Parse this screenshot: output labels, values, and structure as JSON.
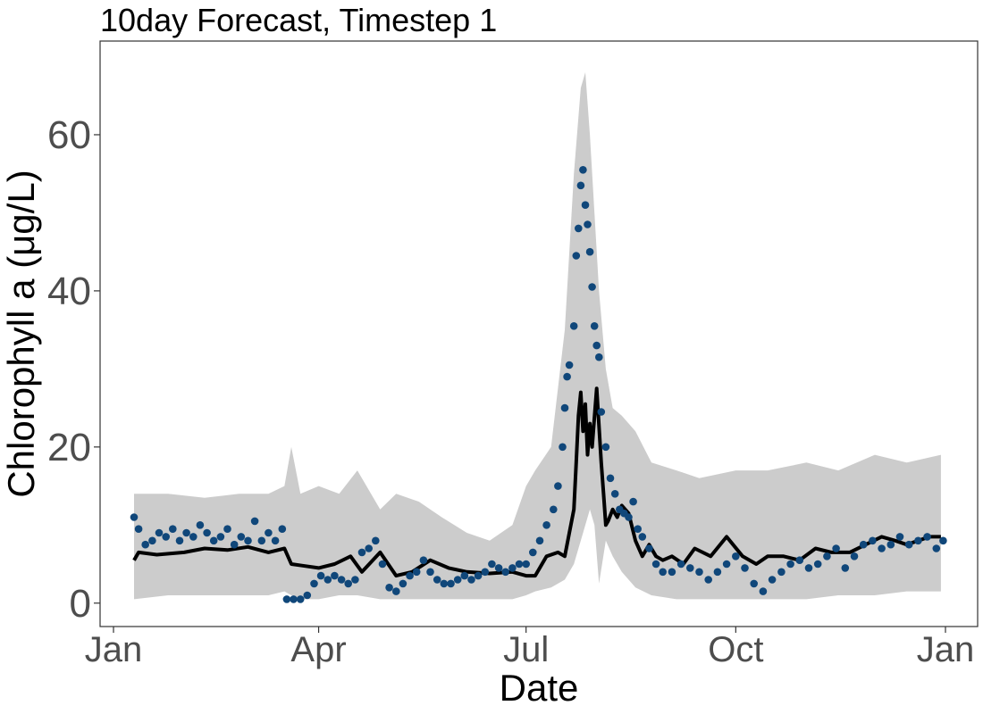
{
  "chart_data": {
    "type": "line",
    "title": "10day Forecast, Timestep 1",
    "xlabel": "Date",
    "ylabel": "Chlorophyll a (μg/L)",
    "xlim": [
      "2019-01-01",
      "2020-01-01"
    ],
    "ylim": [
      -3,
      72
    ],
    "x_tick_labels": [
      {
        "date": "2019-01-01",
        "label": "Jan"
      },
      {
        "date": "2019-04-01",
        "label": "Apr"
      },
      {
        "date": "2019-07-01",
        "label": "Jul"
      },
      {
        "date": "2019-10-01",
        "label": "Oct"
      },
      {
        "date": "2020-01-01",
        "label": "Jan"
      }
    ],
    "y_ticks": [
      0,
      20,
      40,
      60
    ],
    "grid": false,
    "colors": {
      "ribbon": "#cccccc",
      "forecast_line": "#000000",
      "observations": "#10477a",
      "panel_border": "#333333",
      "tick_text": "#4d4d4d"
    },
    "series": [
      {
        "kind": "ribbon",
        "x": [
          "2019-01-10",
          "2019-01-25",
          "2019-02-10",
          "2019-02-25",
          "2019-03-10",
          "2019-03-17",
          "2019-03-20",
          "2019-03-24",
          "2019-04-01",
          "2019-04-10",
          "2019-04-18",
          "2019-04-28",
          "2019-05-05",
          "2019-05-15",
          "2019-05-25",
          "2019-06-05",
          "2019-06-15",
          "2019-06-25",
          "2019-07-01",
          "2019-07-05",
          "2019-07-12",
          "2019-07-18",
          "2019-07-22",
          "2019-07-25",
          "2019-07-27",
          "2019-07-29",
          "2019-07-31",
          "2019-08-02",
          "2019-08-05",
          "2019-08-08",
          "2019-08-12",
          "2019-08-18",
          "2019-08-25",
          "2019-09-05",
          "2019-09-15",
          "2019-10-01",
          "2019-10-15",
          "2019-11-01",
          "2019-11-15",
          "2019-12-01",
          "2019-12-15",
          "2019-12-30"
        ],
        "low": [
          0.5,
          1.0,
          1.0,
          1.0,
          1.0,
          1.5,
          1.0,
          0.5,
          0.5,
          1.0,
          1.0,
          0.5,
          0.5,
          0.5,
          0.5,
          0.5,
          0.5,
          0.5,
          1.0,
          1.5,
          2.0,
          3.0,
          5.0,
          8.0,
          10.0,
          12.0,
          10.0,
          2.5,
          8.0,
          6.0,
          4.0,
          2.0,
          1.0,
          0.5,
          0.5,
          0.5,
          0.5,
          0.5,
          1.0,
          1.0,
          1.5,
          1.5
        ],
        "high": [
          14.0,
          14.0,
          13.5,
          14.0,
          14.0,
          15.0,
          20.0,
          14.0,
          15.0,
          14.0,
          17.0,
          12.0,
          14.0,
          13.0,
          11.0,
          9.0,
          8.0,
          10.0,
          15.0,
          17.0,
          20.0,
          35.0,
          55.0,
          66.0,
          68.0,
          60.0,
          50.0,
          40.0,
          30.0,
          25.0,
          24.0,
          22.0,
          18.0,
          17.0,
          16.0,
          17.0,
          17.0,
          18.0,
          17.0,
          19.0,
          18.0,
          19.0
        ]
      },
      {
        "kind": "line",
        "x": [
          "2019-01-10",
          "2019-01-12",
          "2019-01-20",
          "2019-02-01",
          "2019-02-10",
          "2019-02-20",
          "2019-03-01",
          "2019-03-10",
          "2019-03-17",
          "2019-03-20",
          "2019-03-25",
          "2019-04-01",
          "2019-04-08",
          "2019-04-15",
          "2019-04-20",
          "2019-04-28",
          "2019-05-05",
          "2019-05-12",
          "2019-05-20",
          "2019-05-28",
          "2019-06-05",
          "2019-06-15",
          "2019-06-25",
          "2019-07-01",
          "2019-07-05",
          "2019-07-10",
          "2019-07-15",
          "2019-07-18",
          "2019-07-20",
          "2019-07-22",
          "2019-07-23",
          "2019-07-24",
          "2019-07-25",
          "2019-07-26",
          "2019-07-27",
          "2019-07-28",
          "2019-07-29",
          "2019-07-30",
          "2019-08-01",
          "2019-08-03",
          "2019-08-04",
          "2019-08-05",
          "2019-08-06",
          "2019-08-08",
          "2019-08-10",
          "2019-08-12",
          "2019-08-15",
          "2019-08-18",
          "2019-08-21",
          "2019-08-24",
          "2019-08-27",
          "2019-08-30",
          "2019-09-03",
          "2019-09-08",
          "2019-09-13",
          "2019-09-20",
          "2019-09-27",
          "2019-10-04",
          "2019-10-10",
          "2019-10-15",
          "2019-10-22",
          "2019-10-29",
          "2019-11-05",
          "2019-11-12",
          "2019-11-20",
          "2019-11-27",
          "2019-12-04",
          "2019-12-10",
          "2019-12-15",
          "2019-12-20",
          "2019-12-25",
          "2019-12-30"
        ],
        "y": [
          5.5,
          6.5,
          6.2,
          6.5,
          7.0,
          6.8,
          7.2,
          6.5,
          7.0,
          5.0,
          4.8,
          4.5,
          5.0,
          6.0,
          4.0,
          6.5,
          3.5,
          4.0,
          5.5,
          4.5,
          4.0,
          3.8,
          4.0,
          3.5,
          3.5,
          6.0,
          6.5,
          6.0,
          9.0,
          12.0,
          18.0,
          24.0,
          27.0,
          22.0,
          25.5,
          19.0,
          23.0,
          20.0,
          27.5,
          18.0,
          14.0,
          10.0,
          10.5,
          12.0,
          11.0,
          12.5,
          11.5,
          8.0,
          6.0,
          7.5,
          6.0,
          5.5,
          6.0,
          5.0,
          7.0,
          6.0,
          8.5,
          6.0,
          5.0,
          6.0,
          6.0,
          5.5,
          7.0,
          6.5,
          6.5,
          7.5,
          8.5,
          8.0,
          7.5,
          8.0,
          8.5,
          8.5
        ]
      },
      {
        "kind": "points",
        "x": [
          "2019-01-10",
          "2019-01-12",
          "2019-01-15",
          "2019-01-18",
          "2019-01-21",
          "2019-01-24",
          "2019-01-27",
          "2019-01-30",
          "2019-02-02",
          "2019-02-05",
          "2019-02-08",
          "2019-02-11",
          "2019-02-14",
          "2019-02-17",
          "2019-02-20",
          "2019-02-23",
          "2019-02-26",
          "2019-03-01",
          "2019-03-04",
          "2019-03-07",
          "2019-03-10",
          "2019-03-13",
          "2019-03-16",
          "2019-03-18",
          "2019-03-21",
          "2019-03-24",
          "2019-03-27",
          "2019-03-30",
          "2019-04-02",
          "2019-04-05",
          "2019-04-08",
          "2019-04-11",
          "2019-04-14",
          "2019-04-17",
          "2019-04-20",
          "2019-04-23",
          "2019-04-26",
          "2019-04-29",
          "2019-05-02",
          "2019-05-05",
          "2019-05-08",
          "2019-05-11",
          "2019-05-14",
          "2019-05-17",
          "2019-05-20",
          "2019-05-23",
          "2019-05-26",
          "2019-05-29",
          "2019-06-01",
          "2019-06-04",
          "2019-06-07",
          "2019-06-10",
          "2019-06-13",
          "2019-06-16",
          "2019-06-19",
          "2019-06-22",
          "2019-06-25",
          "2019-06-28",
          "2019-07-01",
          "2019-07-04",
          "2019-07-07",
          "2019-07-10",
          "2019-07-13",
          "2019-07-15",
          "2019-07-17",
          "2019-07-18",
          "2019-07-19",
          "2019-07-20",
          "2019-07-22",
          "2019-07-23",
          "2019-07-24",
          "2019-07-25",
          "2019-07-26",
          "2019-07-27",
          "2019-07-28",
          "2019-07-29",
          "2019-07-30",
          "2019-07-31",
          "2019-08-01",
          "2019-08-02",
          "2019-08-03",
          "2019-08-05",
          "2019-08-07",
          "2019-08-09",
          "2019-08-11",
          "2019-08-13",
          "2019-08-15",
          "2019-08-17",
          "2019-08-19",
          "2019-08-21",
          "2019-08-24",
          "2019-08-27",
          "2019-08-30",
          "2019-09-03",
          "2019-09-07",
          "2019-09-11",
          "2019-09-15",
          "2019-09-19",
          "2019-09-23",
          "2019-09-27",
          "2019-10-01",
          "2019-10-05",
          "2019-10-09",
          "2019-10-13",
          "2019-10-17",
          "2019-10-21",
          "2019-10-25",
          "2019-10-29",
          "2019-11-02",
          "2019-11-06",
          "2019-11-10",
          "2019-11-14",
          "2019-11-18",
          "2019-11-22",
          "2019-11-26",
          "2019-11-30",
          "2019-12-04",
          "2019-12-08",
          "2019-12-12",
          "2019-12-16",
          "2019-12-20",
          "2019-12-24",
          "2019-12-28",
          "2019-12-31"
        ],
        "y": [
          11.0,
          9.5,
          7.5,
          8.0,
          9.0,
          8.5,
          9.5,
          8.0,
          9.0,
          8.5,
          10.0,
          9.0,
          8.0,
          8.5,
          9.5,
          7.5,
          8.5,
          8.0,
          10.5,
          8.0,
          9.0,
          8.0,
          9.5,
          0.5,
          0.5,
          0.5,
          1.0,
          2.5,
          3.5,
          3.0,
          3.5,
          3.0,
          2.5,
          3.0,
          6.5,
          7.0,
          8.0,
          5.0,
          2.0,
          1.5,
          2.5,
          3.5,
          4.0,
          5.5,
          4.0,
          3.0,
          2.5,
          2.5,
          3.0,
          3.5,
          3.0,
          3.5,
          4.0,
          5.0,
          4.5,
          4.0,
          4.5,
          5.0,
          5.0,
          6.5,
          8.0,
          10.0,
          12.0,
          15.0,
          20.0,
          25.0,
          29.0,
          30.5,
          35.5,
          44.5,
          48.0,
          53.5,
          55.5,
          51.0,
          48.5,
          45.0,
          40.5,
          35.5,
          33.0,
          31.5,
          24.5,
          20.0,
          16.0,
          14.0,
          12.0,
          11.5,
          11.0,
          13.0,
          9.5,
          8.5,
          7.0,
          5.0,
          4.0,
          4.0,
          5.0,
          4.5,
          4.0,
          3.0,
          4.0,
          5.0,
          6.0,
          4.5,
          2.5,
          1.5,
          3.0,
          4.0,
          5.0,
          5.5,
          4.5,
          5.0,
          6.0,
          7.0,
          4.5,
          6.0,
          7.5,
          8.0,
          7.0,
          7.5,
          8.5,
          7.5,
          8.0,
          8.5,
          7.0,
          8.0
        ]
      }
    ]
  }
}
